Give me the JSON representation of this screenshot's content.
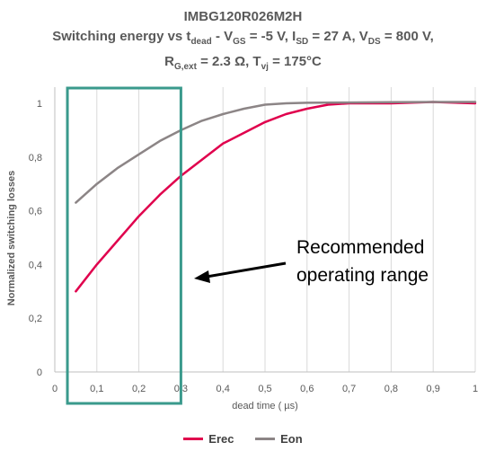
{
  "title": {
    "line1": "IMBG120R026M2H",
    "line2": {
      "p1": "Switching energy vs t",
      "s1": "dead",
      "p2": " - V",
      "s2": "GS",
      "p3": " = -5 V, I",
      "s3": "SD",
      "p4": " = 27 A, V",
      "s4": "DS",
      "p5": " = 800 V,"
    },
    "line3": {
      "p1": "R",
      "s1": "G,ext",
      "p2": " = 2.3 Ω, T",
      "s2": "vj",
      "p3": " = 175°C"
    }
  },
  "annotation": {
    "line1": "Recommended",
    "line2": "operating range"
  },
  "chart_data": {
    "type": "line",
    "xlabel": "dead time ( µs)",
    "ylabel": "Normalized switching losses",
    "xlim": [
      0,
      1
    ],
    "ylim": [
      0,
      1
    ],
    "x_ticks": [
      "0",
      "0,1",
      "0,2",
      "0,3",
      "0,4",
      "0,5",
      "0,6",
      "0,7",
      "0,8",
      "0,9",
      "1"
    ],
    "y_ticks": [
      "0",
      "0,2",
      "0,4",
      "0,6",
      "0,8",
      "1"
    ],
    "grid": "vertical",
    "legend": "bottom",
    "highlight_range": [
      0.03,
      0.3
    ],
    "series": [
      {
        "name": "Erec",
        "color": "#E0004D",
        "x": [
          0.05,
          0.1,
          0.15,
          0.2,
          0.25,
          0.3,
          0.35,
          0.4,
          0.45,
          0.5,
          0.55,
          0.6,
          0.65,
          0.7,
          0.8,
          0.9,
          1.0
        ],
        "y": [
          0.3,
          0.4,
          0.49,
          0.58,
          0.66,
          0.73,
          0.79,
          0.85,
          0.89,
          0.93,
          0.96,
          0.98,
          0.995,
          1.0,
          1.0,
          1.005,
          1.0
        ]
      },
      {
        "name": "Eon",
        "color": "#8C8586",
        "x": [
          0.05,
          0.1,
          0.15,
          0.2,
          0.25,
          0.3,
          0.35,
          0.4,
          0.45,
          0.5,
          0.55,
          0.6,
          0.7,
          0.8,
          0.9,
          1.0
        ],
        "y": [
          0.63,
          0.7,
          0.76,
          0.81,
          0.86,
          0.9,
          0.935,
          0.96,
          0.98,
          0.995,
          1.0,
          1.002,
          1.003,
          1.004,
          1.005,
          1.005
        ]
      }
    ]
  }
}
